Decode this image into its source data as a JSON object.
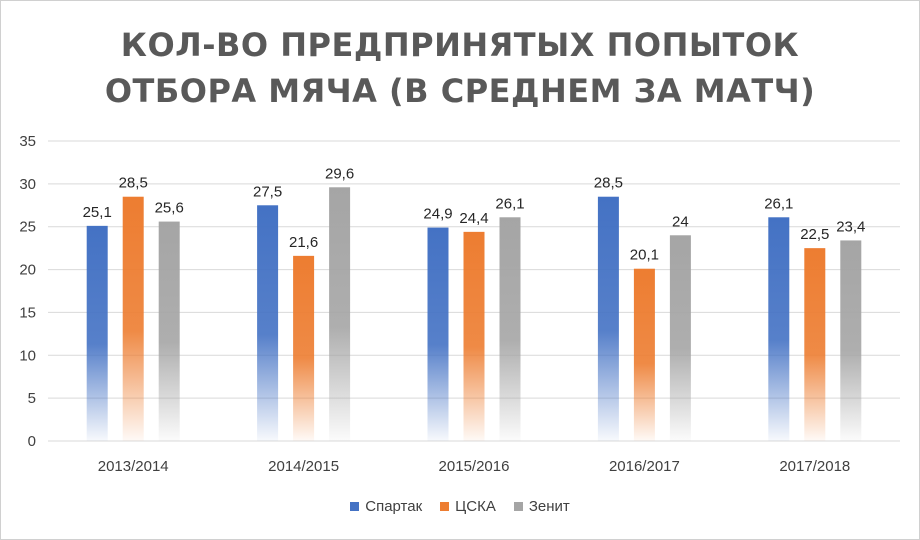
{
  "chart_data": {
    "type": "bar",
    "title_lines": [
      "КОЛ-ВО ПРЕДПРИНЯТЫХ ПОПЫТОК",
      "ОТБОРА МЯЧА (В СРЕДНЕМ ЗА МАТЧ)"
    ],
    "categories": [
      "2013/2014",
      "2014/2015",
      "2015/2016",
      "2016/2017",
      "2017/2018"
    ],
    "series": [
      {
        "name": "Спартак",
        "color": "#4472C4",
        "values": [
          25.1,
          27.5,
          24.9,
          28.5,
          26.1
        ],
        "labels": [
          "25,1",
          "27,5",
          "24,9",
          "28,5",
          "26,1"
        ]
      },
      {
        "name": "ЦСКА",
        "color": "#ED7D31",
        "values": [
          28.5,
          21.6,
          24.4,
          20.1,
          22.5
        ],
        "labels": [
          "28,5",
          "21,6",
          "24,4",
          "20,1",
          "22,5"
        ]
      },
      {
        "name": "Зенит",
        "color": "#A5A5A5",
        "values": [
          25.6,
          29.6,
          26.1,
          24,
          23.4
        ],
        "labels": [
          "25,6",
          "29,6",
          "26,1",
          "24",
          "23,4"
        ]
      }
    ],
    "yticks": [
      "0",
      "5",
      "10",
      "15",
      "20",
      "25",
      "30",
      "35"
    ],
    "ylim": [
      0,
      35
    ],
    "grid": true,
    "legend_position": "bottom"
  }
}
